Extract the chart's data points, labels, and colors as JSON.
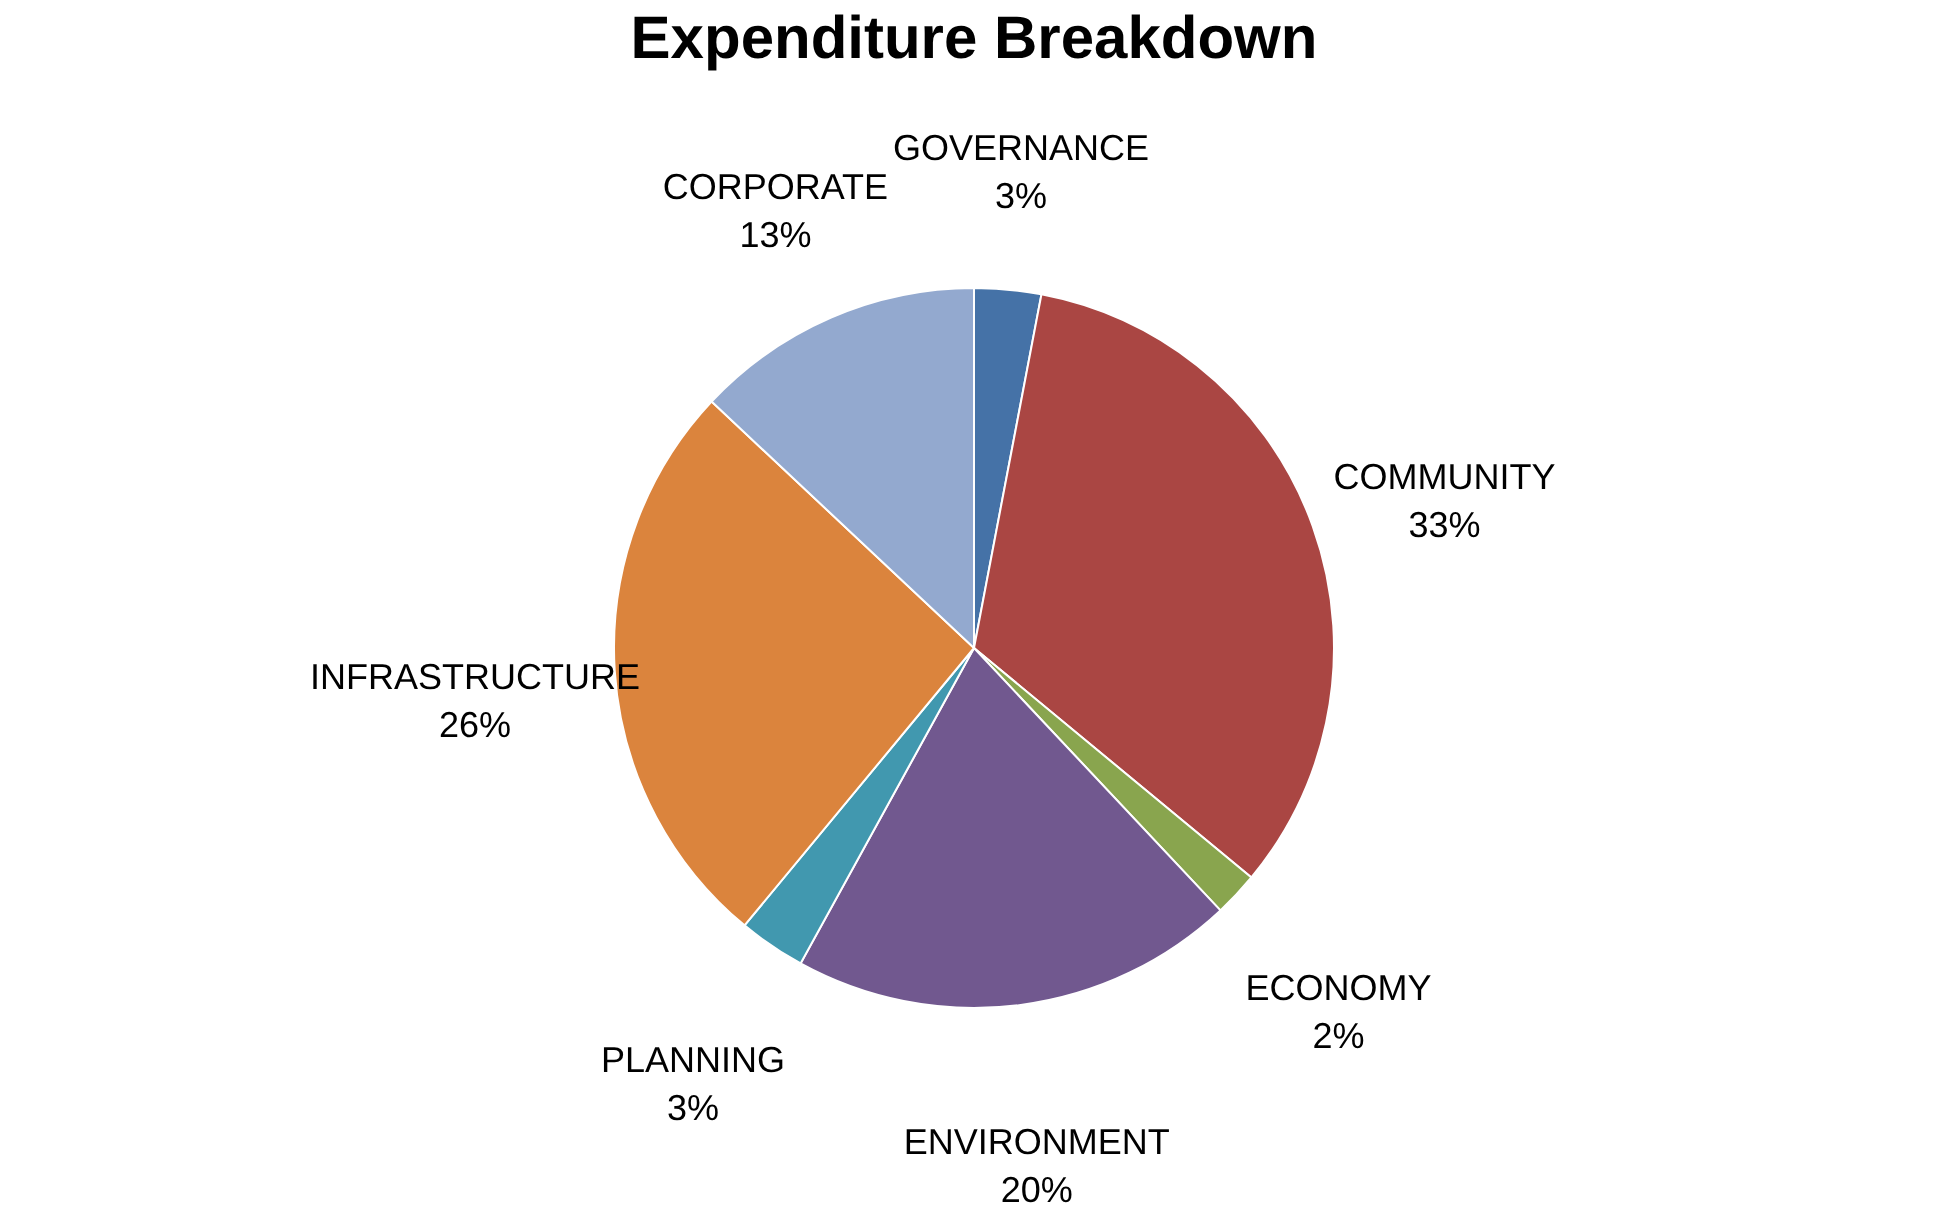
{
  "chart_data": {
    "type": "pie",
    "title": "Expenditure Breakdown",
    "categories": [
      "GOVERNANCE",
      "COMMUNITY",
      "ECONOMY",
      "ENVIRONMENT",
      "PLANNING",
      "INFRASTRUCTURE",
      "CORPORATE"
    ],
    "values": [
      3,
      33,
      2,
      20,
      3,
      26,
      13
    ],
    "value_labels": [
      "3%",
      "33%",
      "2%",
      "20%",
      "3%",
      "26%",
      "13%"
    ],
    "colors": [
      "#4572a7",
      "#aa4643",
      "#89a54e",
      "#71588f",
      "#4198af",
      "#db843d",
      "#93a9cf"
    ],
    "legend": false
  }
}
